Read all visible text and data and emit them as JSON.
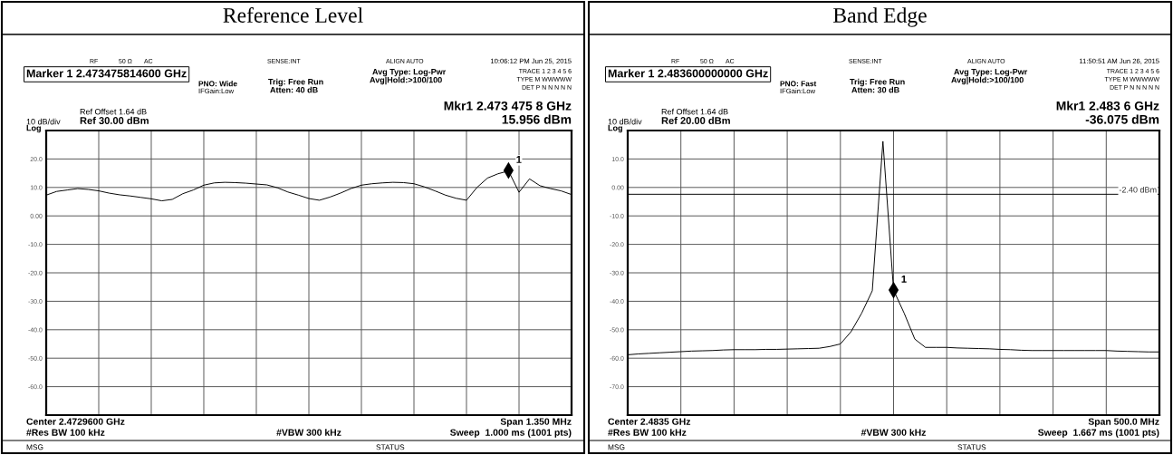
{
  "chart_data": [
    {
      "type": "line",
      "title": "Reference Level",
      "annotations": [
        "Marker 1 2.473475814600 GHz",
        "RF",
        "50 Ω",
        "AC",
        "SENSE:INT",
        "ALIGN AUTO",
        "10:06:12 PM Jun 25, 2015",
        "PNO: Wide",
        "IFGain:Low",
        "Trig: Free Run",
        "Atten: 40 dB",
        "Avg Type: Log-Pwr",
        "Avg|Hold:>100/100",
        "TRACE 1 2 3 4 5 6",
        "TYPE M WWWWW",
        "DET P N N N N N",
        "Ref Offset 1.64 dB",
        "Ref 30.00 dBm",
        "10 dB/div",
        "Log",
        "Mkr1 2.473 475 8 GHz",
        "15.956 dBm",
        "Center 2.4729600 GHz",
        "Span 1.350 MHz",
        "#Res BW 100 kHz",
        "#VBW 300 kHz",
        "Sweep  1.000 ms (1001 pts)",
        "MSG",
        "STATUS",
        "1"
      ],
      "categories": [
        null,
        null,
        null,
        null,
        null,
        null,
        null,
        null,
        null,
        null,
        null,
        null,
        null,
        null,
        null,
        null,
        null,
        null,
        null,
        null,
        null,
        null,
        null,
        null,
        null,
        null,
        null,
        null,
        null,
        null,
        null,
        null,
        null,
        null,
        null,
        null,
        null,
        null,
        null,
        null,
        null,
        null,
        null,
        null,
        null,
        null,
        null,
        null,
        null,
        null,
        null
      ],
      "series": [
        {
          "color": "#000000",
          "values": [
            7.3,
            8.6,
            9.1,
            9.6,
            9.3,
            8.8,
            8.0,
            7.4,
            7.0,
            6.5,
            6.0,
            5.3,
            5.8,
            7.8,
            9.1,
            10.8,
            11.6,
            11.8,
            11.7,
            11.5,
            11.2,
            10.9,
            9.9,
            8.4,
            7.3,
            6.1,
            5.5,
            6.6,
            8.0,
            9.6,
            10.8,
            11.3,
            11.6,
            11.8,
            11.7,
            11.3,
            10.2,
            8.8,
            7.3,
            6.2,
            5.5,
            10.0,
            13.3,
            14.8,
            15.8,
            8.3,
            13.0,
            10.6,
            9.6,
            8.8,
            7.5
          ]
        },
        {
          "type": "scatter",
          "color": "#000000",
          "marker": "diamond",
          "values": [
            null,
            null,
            null,
            null,
            null,
            null,
            null,
            null,
            null,
            null,
            null,
            null,
            null,
            null,
            null,
            null,
            null,
            null,
            null,
            null,
            null,
            null,
            null,
            null,
            null,
            null,
            null,
            null,
            null,
            null,
            null,
            null,
            null,
            null,
            null,
            null,
            null,
            null,
            null,
            null,
            null,
            null,
            null,
            null,
            15.956,
            null,
            null,
            null,
            null,
            null,
            null
          ]
        }
      ],
      "ylim": [
        -70,
        30
      ],
      "yticks": [
        {
          "value": 20,
          "label": "20.0"
        },
        {
          "value": 10,
          "label": "10.0"
        },
        {
          "value": 0,
          "label": "0.00"
        },
        {
          "value": -10,
          "label": "-10.0"
        },
        {
          "value": -20,
          "label": "-20.0"
        },
        {
          "value": -30,
          "label": "-30.0"
        },
        {
          "value": -40,
          "label": "-40.0"
        },
        {
          "value": -50,
          "label": "-50.0"
        },
        {
          "value": -60,
          "label": "-60.0"
        }
      ],
      "grid": true
    },
    {
      "type": "line",
      "title": "Band Edge",
      "annotations": [
        "Marker 1 2.483600000000 GHz",
        "RF",
        "50 Ω",
        "AC",
        "SENSE:INT",
        "ALIGN AUTO",
        "11:50:51 AM Jun 26, 2015",
        "PNO: Fast",
        "IFGain:Low",
        "Trig: Free Run",
        "Atten: 30 dB",
        "Avg Type: Log-Pwr",
        "Avg|Hold:>100/100",
        "TRACE 1 2 3 4 5 6",
        "TYPE M WWWWW",
        "DET P N N N N N",
        "Ref Offset 1.64 dB",
        "Ref 20.00 dBm",
        "10 dB/div",
        "Log",
        "Mkr1 2.483 6 GHz",
        "-36.075 dBm",
        "Center 2.4835 GHz",
        "Span 500.0 MHz",
        "#Res BW 100 kHz",
        "#VBW 300 kHz",
        "Sweep  1.667 ms (1001 pts)",
        "MSG",
        "STATUS",
        "1"
      ],
      "categories": [
        null,
        null,
        null,
        null,
        null,
        null,
        null,
        null,
        null,
        null,
        null,
        null,
        null,
        null,
        null,
        null,
        null,
        null,
        null,
        null,
        null,
        null,
        null,
        null,
        null,
        null,
        null,
        null,
        null,
        null,
        null,
        null,
        null,
        null,
        null,
        null,
        null,
        null,
        null,
        null,
        null,
        null,
        null,
        null,
        null,
        null,
        null,
        null,
        null,
        null,
        null
      ],
      "series": [
        {
          "color": "#000000",
          "values": [
            -58.8,
            -58.5,
            -58.3,
            -58.1,
            -57.9,
            -57.7,
            -57.5,
            -57.4,
            -57.3,
            -57.1,
            -57.0,
            -57.0,
            -57.0,
            -56.9,
            -56.9,
            -56.8,
            -56.7,
            -56.6,
            -56.5,
            -55.9,
            -55.0,
            -50.7,
            -44.2,
            -36.3,
            16.2,
            -36.1,
            -44.2,
            -53.3,
            -56.2,
            -56.2,
            -56.2,
            -56.4,
            -56.5,
            -56.6,
            -56.7,
            -56.9,
            -57.0,
            -57.2,
            -57.3,
            -57.3,
            -57.3,
            -57.3,
            -57.3,
            -57.3,
            -57.3,
            -57.3,
            -57.5,
            -57.6,
            -57.7,
            -57.8,
            -57.8
          ]
        },
        {
          "type": "scatter",
          "color": "#000000",
          "marker": "diamond",
          "values": [
            null,
            null,
            null,
            null,
            null,
            null,
            null,
            null,
            null,
            null,
            null,
            null,
            null,
            null,
            null,
            null,
            null,
            null,
            null,
            null,
            null,
            null,
            null,
            null,
            null,
            -36.075,
            null,
            null,
            null,
            null,
            null,
            null,
            null,
            null,
            null,
            null,
            null,
            null,
            null,
            null,
            null,
            null,
            null,
            null,
            null,
            null,
            null,
            null,
            null,
            null,
            null
          ]
        }
      ],
      "ylim": [
        -80,
        20
      ],
      "yticks": [
        {
          "value": 10,
          "label": "10.0"
        },
        {
          "value": 0,
          "label": "0.00"
        },
        {
          "value": -10,
          "label": "-10.0"
        },
        {
          "value": -20,
          "label": "-20.0"
        },
        {
          "value": -30,
          "label": "-30.0"
        },
        {
          "value": -40,
          "label": "-40.0"
        },
        {
          "value": -50,
          "label": "-50.0"
        },
        {
          "value": -60,
          "label": "-60.0"
        },
        {
          "value": -70,
          "label": "-70.0"
        }
      ],
      "ref_lines": [
        {
          "axis": "y",
          "value": -2.4,
          "label": "-2.40 dBm"
        }
      ],
      "grid": true
    }
  ]
}
